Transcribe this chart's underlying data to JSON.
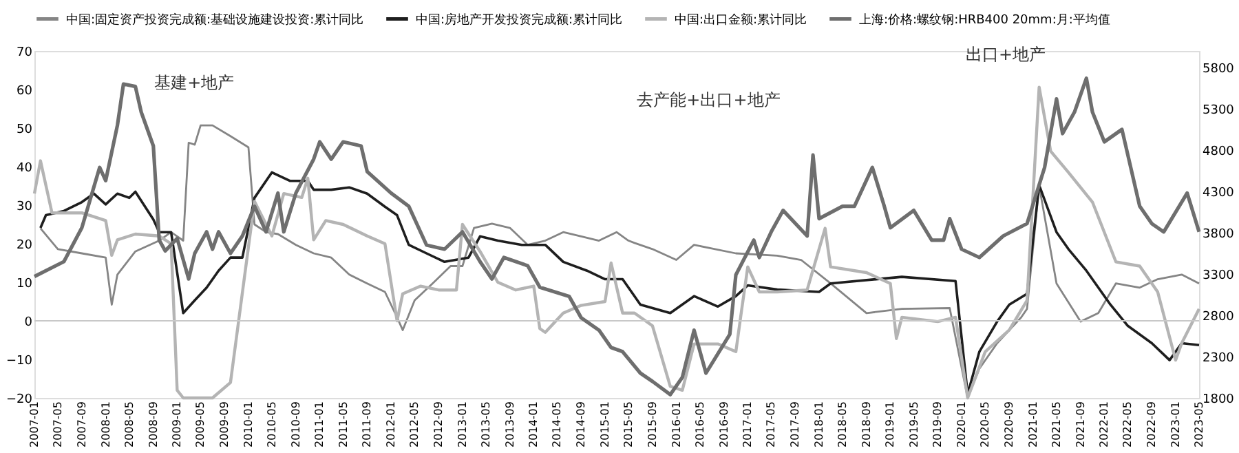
{
  "chart_data": {
    "type": "line",
    "legend": "top",
    "annotations": [
      "基建+地产",
      "去产能+出口+地产",
      "出口+地产"
    ],
    "xlim": [
      "2007-01",
      "2023-05"
    ],
    "xticks": [
      "2007-01",
      "2007-05",
      "2007-09",
      "2008-01",
      "2008-05",
      "2008-09",
      "2009-01",
      "2009-05",
      "2009-09",
      "2010-01",
      "2010-05",
      "2010-09",
      "2011-01",
      "2011-05",
      "2011-09",
      "2012-01",
      "2012-05",
      "2012-09",
      "2013-01",
      "2013-05",
      "2013-09",
      "2014-01",
      "2014-05",
      "2014-09",
      "2015-01",
      "2015-05",
      "2015-09",
      "2016-01",
      "2016-05",
      "2016-09",
      "2017-01",
      "2017-05",
      "2017-09",
      "2018-01",
      "2018-05",
      "2018-09",
      "2019-01",
      "2019-05",
      "2019-09",
      "2020-01",
      "2020-05",
      "2020-09",
      "2021-01",
      "2021-05",
      "2021-09",
      "2022-01",
      "2022-05",
      "2022-09",
      "2023-01",
      "2023-05"
    ],
    "ylim": [
      -20,
      70
    ],
    "yticks": [
      -20,
      -10,
      0,
      10,
      20,
      30,
      40,
      50,
      60,
      70
    ],
    "y2lim": [
      1800,
      6000
    ],
    "y2ticks": [
      1800,
      2300,
      2800,
      3300,
      3800,
      4300,
      4800,
      5300,
      5800
    ],
    "ref_lines": [
      {
        "axis": "y",
        "value": 0,
        "color": "#c8c8c8"
      }
    ],
    "series": [
      {
        "name": "中国:固定资产投资完成额:基础设施建设投资:累计同比",
        "color": "#858585",
        "x": [
          "2007-02",
          "2007-05",
          "2007-09",
          "2008-01",
          "2008-02",
          "2008-03",
          "2008-06",
          "2008-10",
          "2008-12",
          "2009-02",
          "2009-03",
          "2009-04",
          "2009-05",
          "2009-07",
          "2009-10",
          "2010-01",
          "2010-02",
          "2010-04",
          "2010-06",
          "2010-09",
          "2010-12",
          "2011-03",
          "2011-06",
          "2011-09",
          "2011-12",
          "2012-02",
          "2012-03",
          "2012-05",
          "2012-08",
          "2012-11",
          "2013-01",
          "2013-03",
          "2013-06",
          "2013-09",
          "2013-12",
          "2014-03",
          "2014-06",
          "2014-09",
          "2014-12",
          "2015-03",
          "2015-05",
          "2015-06",
          "2015-09",
          "2016-01",
          "2016-04",
          "2016-11",
          "2017-06",
          "2017-10",
          "2018-03",
          "2018-09",
          "2019-03",
          "2019-11",
          "2020-02",
          "2020-04",
          "2020-07",
          "2020-11",
          "2020-12",
          "2021-02",
          "2021-05",
          "2021-09",
          "2021-12",
          "2022-03",
          "2022-07",
          "2022-10",
          "2023-02",
          "2023-05"
        ],
        "values": [
          24,
          18.6,
          17.5,
          16.4,
          4.2,
          12,
          18,
          20.8,
          23,
          20.8,
          46.2,
          45.7,
          50.7,
          50.7,
          47.9,
          45,
          25,
          23,
          22.5,
          19.7,
          17.5,
          16.4,
          12,
          9.7,
          7.5,
          0.9,
          -2.4,
          5.3,
          9.7,
          14.2,
          14.2,
          24.1,
          25.2,
          24.1,
          19.7,
          20.8,
          23,
          21.9,
          20.8,
          23,
          20.8,
          20.2,
          18.6,
          15.8,
          19.7,
          17.5,
          16.9,
          15.8,
          9.7,
          2,
          3.1,
          3.3,
          -20,
          -12.4,
          -5.8,
          0.9,
          3.1,
          35,
          9.7,
          -0.2,
          2,
          9.7,
          8.6,
          10.8,
          12,
          9.7
        ]
      },
      {
        "name": "中国:房地产开发投资完成额:累计同比",
        "color": "#1e1e1e",
        "x": [
          "2007-02",
          "2007-03",
          "2007-06",
          "2007-09",
          "2007-11",
          "2008-01",
          "2008-03",
          "2008-05",
          "2008-06",
          "2008-09",
          "2008-10",
          "2008-12",
          "2009-02",
          "2009-04",
          "2009-06",
          "2009-08",
          "2009-10",
          "2009-12",
          "2010-02",
          "2010-05",
          "2010-08",
          "2010-11",
          "2010-12",
          "2011-03",
          "2011-06",
          "2011-09",
          "2011-12",
          "2012-02",
          "2012-04",
          "2012-07",
          "2012-10",
          "2013-02",
          "2013-04",
          "2013-07",
          "2013-11",
          "2014-03",
          "2014-06",
          "2014-10",
          "2015-01",
          "2015-04",
          "2015-06",
          "2015-07",
          "2015-12",
          "2016-04",
          "2016-08",
          "2016-11",
          "2017-01",
          "2017-06",
          "2018-01",
          "2018-03",
          "2019-03",
          "2019-12",
          "2020-02",
          "2020-04",
          "2020-07",
          "2020-09",
          "2020-12",
          "2021-02",
          "2021-05",
          "2021-07",
          "2021-10",
          "2022-02",
          "2022-05",
          "2022-09",
          "2022-12",
          "2023-02",
          "2023-05"
        ],
        "values": [
          24.1,
          27.4,
          28.5,
          30.8,
          33,
          30.2,
          33,
          31.9,
          33.5,
          26.3,
          23,
          23,
          2,
          5.3,
          8.6,
          13,
          16.4,
          16.4,
          31.9,
          38.5,
          36.3,
          36.3,
          34,
          34,
          34.6,
          33,
          29.6,
          27.4,
          19.7,
          17.5,
          15.3,
          16.4,
          21.9,
          20.8,
          19.7,
          19.7,
          15.3,
          13,
          10.8,
          10.8,
          6.4,
          4.2,
          2,
          6.4,
          3.7,
          6.4,
          9.2,
          8.1,
          7.5,
          9.7,
          11.4,
          10.3,
          -19,
          -8,
          -0.2,
          4.2,
          7,
          35.2,
          23,
          18.6,
          13,
          4.2,
          -1.3,
          -5.8,
          -10.2,
          -5.8,
          -6.3
        ]
      },
      {
        "name": "中国:出口金额:累计同比",
        "color": "#b4b4b4",
        "x": [
          "2007-01",
          "2007-02",
          "2007-04",
          "2007-09",
          "2008-01",
          "2008-02",
          "2008-03",
          "2008-06",
          "2008-10",
          "2008-12",
          "2009-01",
          "2009-02",
          "2009-07",
          "2009-10",
          "2010-02",
          "2010-05",
          "2010-07",
          "2010-10",
          "2010-11",
          "2010-12",
          "2011-02",
          "2011-05",
          "2011-09",
          "2011-12",
          "2012-02",
          "2012-03",
          "2012-06",
          "2012-09",
          "2012-12",
          "2013-01",
          "2013-04",
          "2013-07",
          "2013-10",
          "2014-01",
          "2014-02",
          "2014-03",
          "2014-06",
          "2014-09",
          "2015-01",
          "2015-02",
          "2015-04",
          "2015-06",
          "2015-09",
          "2015-12",
          "2016-02",
          "2016-04",
          "2016-08",
          "2016-11",
          "2016-12",
          "2017-01",
          "2017-03",
          "2017-06",
          "2017-11",
          "2018-02",
          "2018-03",
          "2018-09",
          "2019-01",
          "2019-02",
          "2019-03",
          "2019-09",
          "2019-12",
          "2020-02",
          "2020-05",
          "2020-09",
          "2020-12",
          "2021-02",
          "2021-04",
          "2021-07",
          "2021-11",
          "2022-03",
          "2022-07",
          "2022-10",
          "2023-01",
          "2023-02",
          "2023-05"
        ],
        "values": [
          33,
          41.5,
          28,
          28,
          26,
          17,
          21,
          22.5,
          22,
          20,
          -18,
          -20,
          -20,
          -16,
          31,
          22,
          33,
          32,
          37,
          21,
          26,
          25,
          22,
          20,
          0,
          7,
          9,
          8,
          8,
          25,
          18,
          10,
          8,
          9,
          -2,
          -3,
          2,
          4,
          5,
          15,
          2,
          2,
          -1.3,
          -17,
          -18,
          -6,
          -6,
          -8,
          3,
          14,
          7.5,
          7.5,
          8,
          24,
          14,
          12.5,
          9.7,
          -4.6,
          0.9,
          -0.2,
          0.9,
          -20,
          -8,
          -2.4,
          5.3,
          60.6,
          44,
          38.5,
          30.8,
          15.3,
          14.2,
          7.5,
          -10.2,
          -5.8,
          3.1
        ]
      },
      {
        "name": "上海:价格:螺纹钢:HRB400 20mm:月:平均值",
        "color": "#6e6e6e",
        "axis": "y2",
        "x": [
          "2007-01",
          "2007-06",
          "2007-09",
          "2007-12",
          "2008-01",
          "2008-03",
          "2008-04",
          "2008-06",
          "2008-07",
          "2008-09",
          "2008-10",
          "2008-11",
          "2009-01",
          "2009-03",
          "2009-04",
          "2009-06",
          "2009-07",
          "2009-08",
          "2009-10",
          "2009-12",
          "2010-02",
          "2010-04",
          "2010-06",
          "2010-07",
          "2010-09",
          "2010-12",
          "2011-01",
          "2011-03",
          "2011-05",
          "2011-08",
          "2011-09",
          "2012-01",
          "2012-04",
          "2012-07",
          "2012-10",
          "2013-01",
          "2013-04",
          "2013-06",
          "2013-08",
          "2013-12",
          "2014-02",
          "2014-07",
          "2014-09",
          "2014-12",
          "2015-02",
          "2015-04",
          "2015-07",
          "2015-09",
          "2015-12",
          "2016-02",
          "2016-04",
          "2016-06",
          "2016-10",
          "2016-11",
          "2017-02",
          "2017-03",
          "2017-05",
          "2017-07",
          "2017-11",
          "2017-12",
          "2018-01",
          "2018-05",
          "2018-07",
          "2018-10",
          "2018-12",
          "2019-01",
          "2019-05",
          "2019-08",
          "2019-10",
          "2019-11",
          "2020-01",
          "2020-04",
          "2020-08",
          "2020-12",
          "2021-03",
          "2021-05",
          "2021-06",
          "2021-08",
          "2021-10",
          "2021-11",
          "2022-01",
          "2022-04",
          "2022-07",
          "2022-09",
          "2022-11",
          "2023-03",
          "2023-05"
        ],
        "values": [
          3270,
          3450,
          3860,
          4590,
          4430,
          5100,
          5600,
          5570,
          5260,
          4850,
          3710,
          3580,
          3730,
          3240,
          3550,
          3810,
          3600,
          3810,
          3550,
          3760,
          4120,
          3810,
          4280,
          3810,
          4280,
          4690,
          4900,
          4690,
          4900,
          4850,
          4540,
          4280,
          4120,
          3650,
          3600,
          3810,
          3450,
          3240,
          3500,
          3400,
          3140,
          3030,
          2770,
          2620,
          2410,
          2360,
          2100,
          2000,
          1840,
          2050,
          2620,
          2100,
          2570,
          3290,
          3710,
          3500,
          3810,
          4070,
          3760,
          4740,
          3970,
          4120,
          4120,
          4590,
          4120,
          3860,
          4070,
          3710,
          3710,
          3970,
          3600,
          3500,
          3760,
          3910,
          4590,
          5420,
          5000,
          5260,
          5670,
          5260,
          4900,
          5050,
          4120,
          3910,
          3810,
          4280,
          3810
        ]
      }
    ]
  }
}
